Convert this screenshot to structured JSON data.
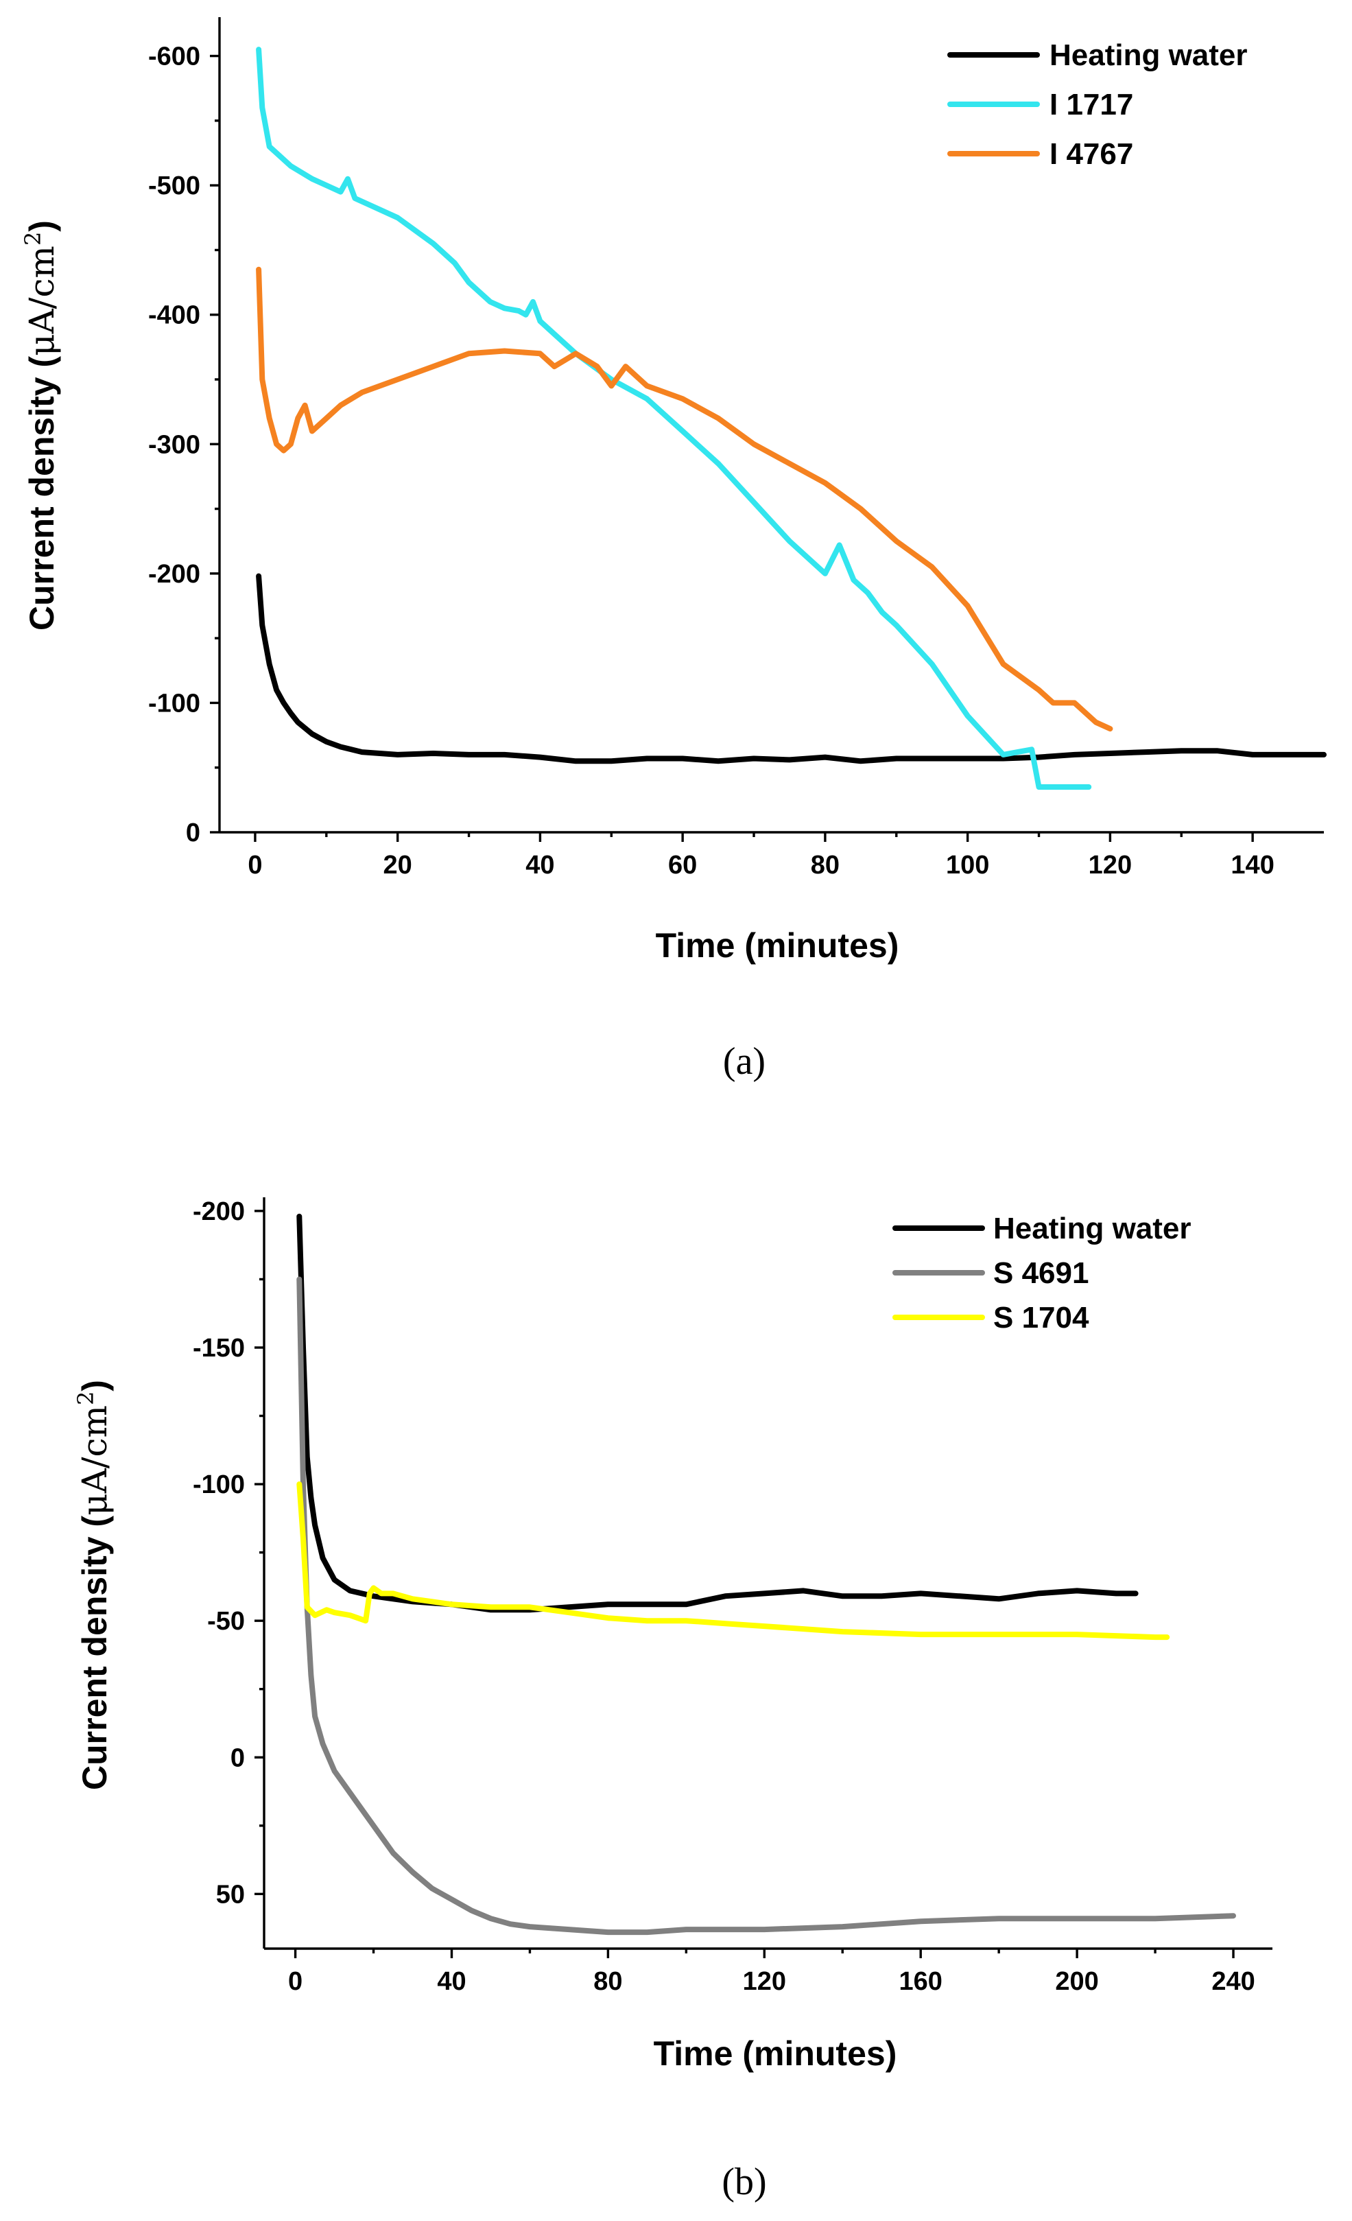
{
  "chart_data": [
    {
      "type": "line",
      "panel_label": "(a)",
      "xlabel": "Time (minutes)",
      "ylabel_prefix": "Current density (",
      "ylabel_unit": "μA/cm",
      "ylabel_exp": "2",
      "ylabel_suffix": ")",
      "xlim": [
        -5,
        150
      ],
      "ylim": [
        0,
        -630
      ],
      "xticks": [
        0,
        20,
        40,
        60,
        80,
        100,
        120,
        140
      ],
      "xtick_labels": [
        "0",
        "20",
        "40",
        "60",
        "80",
        "100",
        "120",
        "140"
      ],
      "yticks": [
        0,
        -100,
        -200,
        -300,
        -400,
        -500,
        -600
      ],
      "ytick_labels": [
        "0",
        "-100",
        "-200",
        "-300",
        "-400",
        "-500",
        "-600"
      ],
      "legend_position": "top-right",
      "series": [
        {
          "name": "Heating water",
          "color": "#000000",
          "x": [
            0.5,
            1,
            2,
            3,
            4,
            5,
            6,
            8,
            10,
            12,
            15,
            20,
            25,
            30,
            35,
            40,
            45,
            50,
            55,
            60,
            65,
            70,
            75,
            80,
            85,
            90,
            95,
            100,
            105,
            110,
            115,
            120,
            125,
            130,
            135,
            140,
            145,
            150
          ],
          "y": [
            -198,
            -160,
            -130,
            -110,
            -100,
            -92,
            -85,
            -76,
            -70,
            -66,
            -62,
            -60,
            -61,
            -60,
            -60,
            -58,
            -55,
            -55,
            -57,
            -57,
            -55,
            -57,
            -56,
            -58,
            -55,
            -57,
            -57,
            -57,
            -57,
            -58,
            -60,
            -61,
            -62,
            -63,
            -63,
            -60,
            -60,
            -60
          ]
        },
        {
          "name": "I 1717",
          "color": "#33E5EE",
          "x": [
            0.5,
            1,
            2,
            3,
            5,
            8,
            10,
            12,
            13,
            14,
            16,
            20,
            25,
            28,
            30,
            33,
            35,
            37,
            38,
            39,
            40,
            42,
            45,
            50,
            55,
            60,
            62,
            65,
            70,
            75,
            80,
            82,
            84,
            86,
            88,
            90,
            95,
            100,
            105,
            107,
            109,
            110,
            113,
            117
          ],
          "y": [
            -605,
            -560,
            -530,
            -525,
            -515,
            -505,
            -500,
            -495,
            -505,
            -490,
            -485,
            -475,
            -455,
            -440,
            -425,
            -410,
            -405,
            -403,
            -400,
            -410,
            -395,
            -385,
            -370,
            -350,
            -335,
            -310,
            -300,
            -285,
            -255,
            -225,
            -200,
            -222,
            -195,
            -185,
            -170,
            -160,
            -130,
            -90,
            -60,
            -62,
            -64,
            -35,
            -35,
            -35
          ]
        },
        {
          "name": "I 4767",
          "color": "#F58220",
          "x": [
            0.5,
            1,
            2,
            3,
            4,
            5,
            6,
            7,
            8,
            10,
            12,
            15,
            20,
            25,
            30,
            35,
            40,
            42,
            45,
            48,
            50,
            52,
            55,
            60,
            65,
            70,
            75,
            80,
            85,
            90,
            95,
            100,
            105,
            110,
            112,
            115,
            118,
            120
          ],
          "y": [
            -435,
            -350,
            -320,
            -300,
            -295,
            -300,
            -320,
            -330,
            -310,
            -320,
            -330,
            -340,
            -350,
            -360,
            -370,
            -372,
            -370,
            -360,
            -370,
            -360,
            -345,
            -360,
            -345,
            -335,
            -320,
            -300,
            -285,
            -270,
            -250,
            -225,
            -205,
            -175,
            -130,
            -110,
            -100,
            -100,
            -85,
            -80
          ]
        }
      ]
    },
    {
      "type": "line",
      "panel_label": "(b)",
      "xlabel": "Time (minutes)",
      "ylabel_prefix": "Current density (",
      "ylabel_unit": "μA/cm",
      "ylabel_exp": "2",
      "ylabel_suffix": ")",
      "xlim": [
        -8,
        250
      ],
      "ylim": [
        70,
        -205
      ],
      "xticks": [
        0,
        40,
        80,
        120,
        160,
        200,
        240
      ],
      "xtick_labels": [
        "0",
        "40",
        "80",
        "120",
        "160",
        "200",
        "240"
      ],
      "yticks": [
        50,
        0,
        -50,
        -100,
        -150,
        -200
      ],
      "ytick_labels": [
        "50",
        "0",
        "-50",
        "-100",
        "-150",
        "-200"
      ],
      "legend_position": "top-right",
      "series": [
        {
          "name": "Heating water",
          "color": "#000000",
          "x": [
            1,
            2,
            3,
            4,
            5,
            7,
            10,
            14,
            20,
            30,
            40,
            50,
            60,
            70,
            80,
            90,
            100,
            110,
            120,
            130,
            140,
            150,
            160,
            170,
            180,
            190,
            200,
            210,
            215
          ],
          "y": [
            -198,
            -150,
            -110,
            -95,
            -85,
            -73,
            -65,
            -61,
            -59,
            -57,
            -56,
            -54,
            -54,
            -55,
            -56,
            -56,
            -56,
            -59,
            -60,
            -61,
            -59,
            -59,
            -60,
            -59,
            -58,
            -60,
            -61,
            -60,
            -60
          ]
        },
        {
          "name": "S 4691",
          "color": "#808080",
          "x": [
            1,
            2,
            3,
            4,
            5,
            7,
            10,
            15,
            20,
            25,
            30,
            35,
            40,
            45,
            50,
            55,
            60,
            70,
            80,
            90,
            100,
            120,
            140,
            160,
            180,
            200,
            220,
            240
          ],
          "y": [
            -175,
            -100,
            -55,
            -30,
            -15,
            -5,
            5,
            15,
            25,
            35,
            42,
            48,
            52,
            56,
            59,
            61,
            62,
            63,
            64,
            64,
            63,
            63,
            62,
            60,
            59,
            59,
            59,
            58
          ]
        },
        {
          "name": "S 1704",
          "color": "#FFFF00",
          "x": [
            1,
            2,
            3,
            5,
            8,
            10,
            14,
            18,
            19,
            20,
            22,
            25,
            30,
            40,
            50,
            60,
            70,
            80,
            90,
            100,
            110,
            120,
            140,
            160,
            180,
            200,
            220,
            223
          ],
          "y": [
            -100,
            -80,
            -55,
            -52,
            -54,
            -53,
            -52,
            -50,
            -60,
            -62,
            -60,
            -60,
            -58,
            -56,
            -55,
            -55,
            -53,
            -51,
            -50,
            -50,
            -49,
            -48,
            -46,
            -45,
            -45,
            -45,
            -44,
            -44
          ]
        }
      ]
    }
  ]
}
